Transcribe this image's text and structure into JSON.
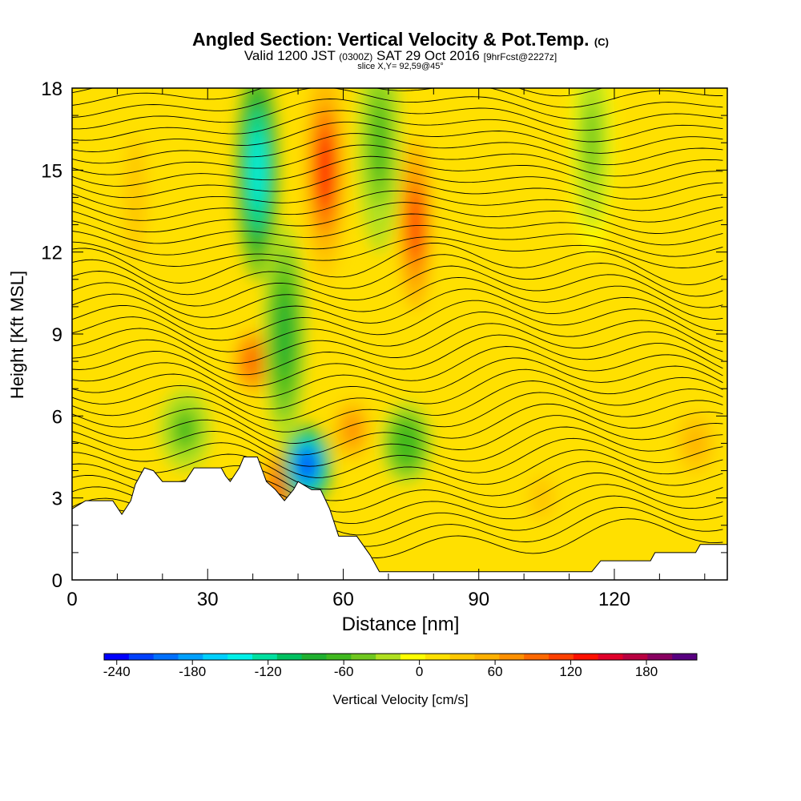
{
  "title": {
    "main": "Angled Section: Vertical Velocity & Pot.Temp.",
    "unit_tag": "(C)",
    "valid_prefix": "Valid 1200 JST",
    "valid_utc": "(0300Z)",
    "valid_date": "SAT 29 Oct 2016",
    "forecast": "[9hrFcst@2227z]",
    "slice": "slice X,Y= 92,59@45°"
  },
  "chart_data": {
    "type": "heatmap",
    "xlabel": "Distance [nm]",
    "ylabel": "Height [Kft MSL]",
    "xlim": [
      0,
      145
    ],
    "ylim": [
      0,
      18
    ],
    "xticks": [
      0,
      30,
      60,
      90,
      120
    ],
    "yticks": [
      0,
      3,
      6,
      9,
      12,
      15,
      18
    ],
    "colorbar": {
      "label": "Vertical Velocity [cm/s]",
      "range": [
        -250,
        220
      ],
      "step": 20,
      "ticks": [
        -240,
        -180,
        -120,
        -60,
        0,
        60,
        120,
        180
      ],
      "colors": [
        "#0000ff",
        "#0040ff",
        "#0070ff",
        "#00a0ff",
        "#00d0ff",
        "#00f0e8",
        "#00e0a0",
        "#00c060",
        "#20b030",
        "#40b820",
        "#70c820",
        "#b0e020",
        "#ffff00",
        "#ffe000",
        "#ffc800",
        "#ffb000",
        "#ff9000",
        "#ff6800",
        "#ff4000",
        "#ff1000",
        "#e0002a",
        "#b80040",
        "#880060",
        "#580080"
      ]
    },
    "updrafts": [
      {
        "x": 56,
        "y": 15,
        "w": 130
      },
      {
        "x": 76,
        "y": 13,
        "w": 115
      },
      {
        "x": 40,
        "y": 8,
        "w": 100
      },
      {
        "x": 46,
        "y": 3.5,
        "w": 100
      },
      {
        "x": 62,
        "y": 5.5,
        "w": 70
      },
      {
        "x": 138,
        "y": 5,
        "w": 60
      },
      {
        "x": 14,
        "y": 14,
        "w": 40
      },
      {
        "x": 104,
        "y": 3,
        "w": 45
      }
    ],
    "downdrafts": [
      {
        "x": 41,
        "y": 15,
        "w": -150
      },
      {
        "x": 52,
        "y": 4.2,
        "w": -230
      },
      {
        "x": 47,
        "y": 9,
        "w": -80
      },
      {
        "x": 74,
        "y": 5,
        "w": -70
      },
      {
        "x": 25,
        "y": 5.5,
        "w": -60
      },
      {
        "x": 68,
        "y": 16,
        "w": -60
      },
      {
        "x": 115,
        "y": 16,
        "w": -40
      }
    ],
    "terrain": [
      [
        0,
        2.6
      ],
      [
        3,
        2.9
      ],
      [
        9,
        2.9
      ],
      [
        11,
        2.4
      ],
      [
        13,
        2.9
      ],
      [
        14,
        3.5
      ],
      [
        16,
        4.1
      ],
      [
        18,
        4.0
      ],
      [
        20,
        3.6
      ],
      [
        25,
        3.6
      ],
      [
        27,
        4.1
      ],
      [
        33,
        4.1
      ],
      [
        34,
        3.8
      ],
      [
        35,
        3.6
      ],
      [
        37,
        4.1
      ],
      [
        38,
        4.5
      ],
      [
        41,
        4.5
      ],
      [
        43,
        3.6
      ],
      [
        45,
        3.3
      ],
      [
        47,
        2.9
      ],
      [
        49,
        3.3
      ],
      [
        50,
        3.6
      ],
      [
        53,
        3.3
      ],
      [
        55,
        3.3
      ],
      [
        57,
        2.6
      ],
      [
        59,
        1.6
      ],
      [
        63,
        1.6
      ],
      [
        66,
        0.9
      ],
      [
        68,
        0.3
      ],
      [
        100,
        0.3
      ],
      [
        115,
        0.3
      ],
      [
        117,
        0.7
      ],
      [
        128,
        0.7
      ],
      [
        129,
        1.0
      ],
      [
        138,
        1.0
      ],
      [
        139,
        1.3
      ],
      [
        145,
        1.3
      ]
    ]
  }
}
